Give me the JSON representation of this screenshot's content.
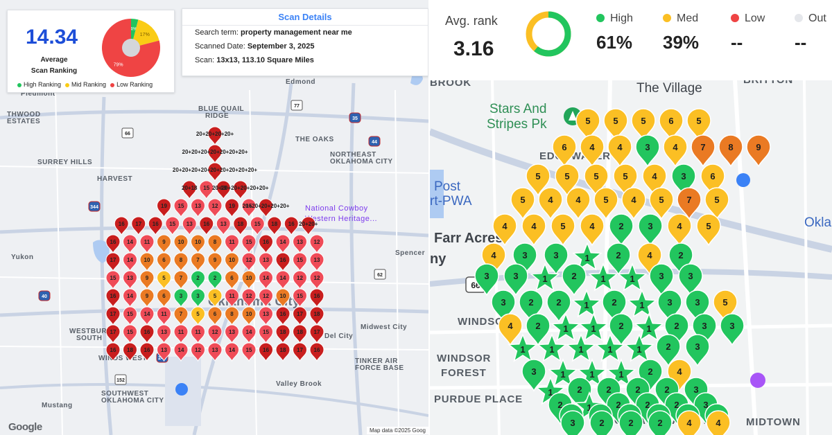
{
  "left_panel": {
    "score_card": {
      "score": "14.34",
      "subtitle_line1": "Average",
      "subtitle_line2": "Scan Ranking",
      "donut_segments": [
        {
          "label": "4%",
          "value": 4,
          "color": "#22c55e"
        },
        {
          "label": "17%",
          "value": 17,
          "color": "#facc15"
        },
        {
          "label": "79%",
          "value": 79,
          "color": "#ef4444"
        }
      ],
      "legend": [
        {
          "label": "High Ranking",
          "color": "#22c55e"
        },
        {
          "label": "Mid Ranking",
          "color": "#facc15"
        },
        {
          "label": "Low Ranking",
          "color": "#ef4444"
        }
      ]
    },
    "scan_details": {
      "title": "Scan Details",
      "search_term_label": "Search term:",
      "search_term": "property management near me",
      "date_label": "Scanned Date:",
      "date": "September 3, 2025",
      "scan_label": "Scan:",
      "scan": "13x13, 113.10 Square Miles"
    },
    "place_labels": [
      "Piedmont",
      "Edmond",
      "THWOOD",
      "ESTATES",
      "BLUE QUAIL",
      "RIDGE",
      "THE OAKS",
      "SURREY HILLS",
      "NORTHEAST",
      "OKLAHOMA CITY",
      "HARVEST",
      "National Cowboy",
      "Western Heritage...",
      "Yukon",
      "Spencer",
      "WESTBURY",
      "SOUTH",
      "Midwest City",
      "Del City",
      "WINDS WEST",
      "TINKER AIR",
      "FORCE BASE",
      "Valley Brook",
      "SOUTHWEST",
      "OKLAHOMA CITY",
      "Mustang",
      "Oklahoma City"
    ],
    "road_shields": [
      "77",
      "66",
      "35",
      "44",
      "344",
      "40",
      "240",
      "152",
      "62"
    ],
    "google_logo": "Google",
    "attribution": "Map data ©2025 Goog",
    "grid_rows": [
      "----20+20+20+20+----",
      "---20+20+20+20+20+20+20+---",
      "--20+20+20+20+20+20+20+20+20+--",
      "-20+18 15 19 20+20+20+20+20+20+-",
      "19 15 13 12 19 15 20+20+20+20+20+",
      "16 17 16 15 13 16 13 18 15 18 16 20+20+",
      "16 14 11 9 10 10 8 11 15 16 14 13 12",
      "17 14 10 6 8 7 9 10 12 13 16 15 13",
      "15 13 9 5 7 2 2 6 10 14 14 12 12",
      "16 14 9 6 3 3 5 11 12 12 10 15 16",
      "17 15 14 11 7 5 6 8 10 13 16 17 18",
      "17 15 16 13 11 11 12 13 14 15 18 18 17",
      "16 18 16 13 14 12 13 14 15 16 18 17 16"
    ]
  },
  "right_panel": {
    "stats": {
      "avg_label": "Avg. rank",
      "avg_value": "3.16",
      "ring_high_fraction": 0.61,
      "items": [
        {
          "label": "High",
          "value": "61%",
          "color": "#22c55e"
        },
        {
          "label": "Med",
          "value": "39%",
          "color": "#fbbf24"
        },
        {
          "label": "Low",
          "value": "--",
          "color": "#ef4444"
        },
        {
          "label": "Out",
          "value": "--",
          "color": "#e5e7eb"
        }
      ]
    },
    "place_labels": [
      "BROOK",
      "The Village",
      "BRITTON",
      "Stars And",
      "Stripes Pk",
      "Post",
      "rt-PWA",
      "Farr Acres",
      "ny",
      "WINDSOR",
      "WINDSOR",
      "FOREST",
      "PURDUE PLACE",
      "OKLAHOMA CITY",
      "MIDTOWN",
      "EDGEWATER",
      "Oklaho"
    ],
    "road_shields": [
      "66"
    ],
    "pins": [
      {
        "r": "5",
        "c": "yellow"
      },
      {
        "r": "5",
        "c": "yellow"
      },
      {
        "r": "5",
        "c": "yellow"
      },
      {
        "r": "6",
        "c": "yellow"
      },
      {
        "r": "5",
        "c": "yellow"
      },
      {
        "r": "6",
        "c": "yellow"
      },
      {
        "r": "4",
        "c": "yellow"
      },
      {
        "r": "4",
        "c": "yellow"
      },
      {
        "r": "3",
        "c": "green"
      },
      {
        "r": "4",
        "c": "yellow"
      },
      {
        "r": "7",
        "c": "orange"
      },
      {
        "r": "8",
        "c": "orange"
      },
      {
        "r": "9",
        "c": "orange"
      },
      {
        "r": "5",
        "c": "yellow"
      },
      {
        "r": "5",
        "c": "yellow"
      },
      {
        "r": "5",
        "c": "yellow"
      },
      {
        "r": "5",
        "c": "yellow"
      },
      {
        "r": "4",
        "c": "yellow"
      },
      {
        "r": "3",
        "c": "green"
      },
      {
        "r": "6",
        "c": "yellow"
      },
      {
        "r": "5",
        "c": "yellow"
      },
      {
        "r": "4",
        "c": "yellow"
      },
      {
        "r": "4",
        "c": "yellow"
      },
      {
        "r": "5",
        "c": "yellow"
      },
      {
        "r": "4",
        "c": "yellow"
      },
      {
        "r": "5",
        "c": "yellow"
      },
      {
        "r": "7",
        "c": "orange"
      },
      {
        "r": "5",
        "c": "yellow"
      },
      {
        "r": "4",
        "c": "yellow"
      },
      {
        "r": "4",
        "c": "yellow"
      },
      {
        "r": "5",
        "c": "yellow"
      },
      {
        "r": "4",
        "c": "yellow"
      },
      {
        "r": "2",
        "c": "green"
      },
      {
        "r": "3",
        "c": "green"
      },
      {
        "r": "4",
        "c": "yellow"
      },
      {
        "r": "5",
        "c": "yellow"
      },
      {
        "r": "4",
        "c": "yellow"
      },
      {
        "r": "3",
        "c": "green"
      },
      {
        "r": "3",
        "c": "green"
      },
      {
        "r": "1",
        "c": "star"
      },
      {
        "r": "2",
        "c": "green"
      },
      {
        "r": "4",
        "c": "yellow"
      },
      {
        "r": "2",
        "c": "green"
      },
      {
        "r": "3",
        "c": "green"
      },
      {
        "r": "3",
        "c": "green"
      },
      {
        "r": "1",
        "c": "star"
      },
      {
        "r": "2",
        "c": "green"
      },
      {
        "r": "1",
        "c": "star"
      },
      {
        "r": "1",
        "c": "star"
      },
      {
        "r": "3",
        "c": "green"
      },
      {
        "r": "3",
        "c": "green"
      },
      {
        "r": "3",
        "c": "green"
      },
      {
        "r": "2",
        "c": "green"
      },
      {
        "r": "2",
        "c": "green"
      },
      {
        "r": "1",
        "c": "star"
      },
      {
        "r": "2",
        "c": "green"
      },
      {
        "r": "1",
        "c": "star"
      },
      {
        "r": "3",
        "c": "green"
      },
      {
        "r": "3",
        "c": "green"
      },
      {
        "r": "5",
        "c": "yellow"
      },
      {
        "r": "4",
        "c": "yellow"
      },
      {
        "r": "2",
        "c": "green"
      },
      {
        "r": "1",
        "c": "star"
      },
      {
        "r": "1",
        "c": "star"
      },
      {
        "r": "2",
        "c": "green"
      },
      {
        "r": "1",
        "c": "star"
      },
      {
        "r": "2",
        "c": "green"
      },
      {
        "r": "3",
        "c": "green"
      },
      {
        "r": "3",
        "c": "green"
      },
      {
        "r": "1",
        "c": "star"
      },
      {
        "r": "1",
        "c": "star"
      },
      {
        "r": "1",
        "c": "star"
      },
      {
        "r": "1",
        "c": "star"
      },
      {
        "r": "1",
        "c": "star"
      },
      {
        "r": "2",
        "c": "green"
      },
      {
        "r": "3",
        "c": "green"
      },
      {
        "r": "3",
        "c": "green"
      },
      {
        "r": "1",
        "c": "star"
      },
      {
        "r": "1",
        "c": "star"
      },
      {
        "r": "1",
        "c": "star"
      },
      {
        "r": "2",
        "c": "green"
      },
      {
        "r": "4",
        "c": "yellow"
      },
      {
        "r": "1",
        "c": "star"
      },
      {
        "r": "2",
        "c": "green"
      },
      {
        "r": "2",
        "c": "green"
      },
      {
        "r": "2",
        "c": "green"
      },
      {
        "r": "2",
        "c": "green"
      },
      {
        "r": "3",
        "c": "green"
      },
      {
        "r": "2",
        "c": "green"
      },
      {
        "r": "1",
        "c": "star"
      },
      {
        "r": "2",
        "c": "green"
      },
      {
        "r": "2",
        "c": "green"
      },
      {
        "r": "2",
        "c": "green"
      },
      {
        "r": "3",
        "c": "green"
      },
      {
        "r": "3",
        "c": "green"
      },
      {
        "r": "2",
        "c": "green"
      },
      {
        "r": "2",
        "c": "green"
      },
      {
        "r": "2",
        "c": "green"
      },
      {
        "r": "2",
        "c": "green"
      },
      {
        "r": "3",
        "c": "green"
      },
      {
        "r": "3",
        "c": "green"
      },
      {
        "r": "2",
        "c": "green"
      },
      {
        "r": "2",
        "c": "green"
      },
      {
        "r": "2",
        "c": "green"
      },
      {
        "r": "4",
        "c": "yellow"
      },
      {
        "r": "4",
        "c": "yellow"
      }
    ]
  },
  "colors": {
    "green": "#22c55e",
    "yellow": "#fbbf24",
    "orange": "#ea7a23",
    "light_red": "#ef4b57",
    "dark_red": "#c81e1e",
    "grey": "#b8bec5"
  }
}
